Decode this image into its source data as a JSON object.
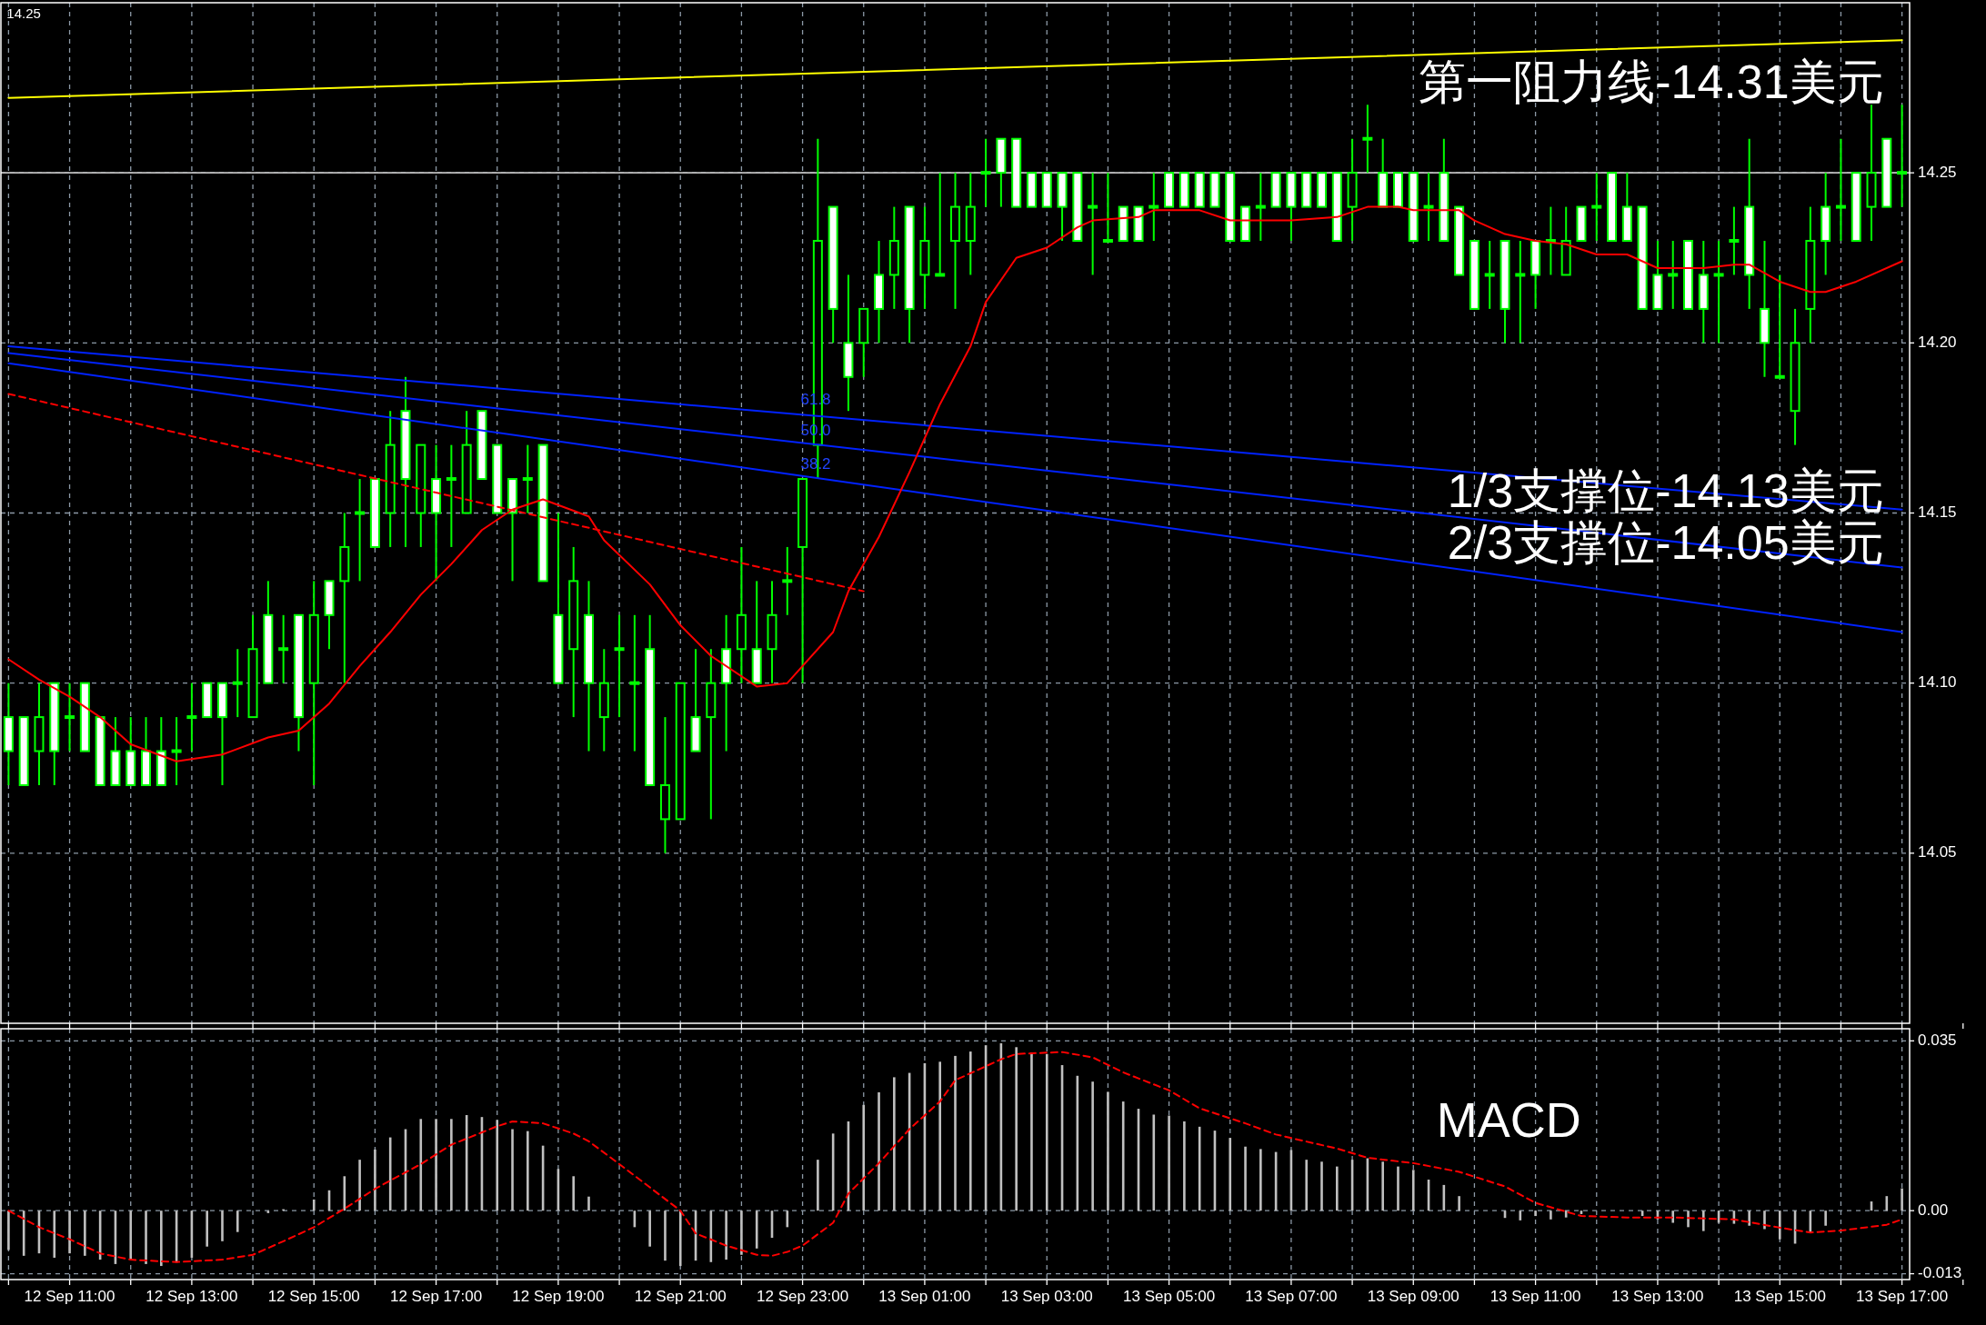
{
  "chart_data": [
    {
      "type": "candlestick",
      "color": "#00ff00",
      "grid": true,
      "tick_labels": "y",
      "ylim": [
        14.0,
        14.3
      ],
      "yticks": [
        14.05,
        {
          "value": 14.1,
          "label": "14.10"
        },
        14.15,
        {
          "value": 14.2,
          "label": "14.20"
        },
        14.25
      ],
      "categories": [
        null,
        null,
        null,
        null,
        null,
        null,
        null,
        null,
        null,
        null,
        null,
        null,
        null,
        null,
        null,
        null,
        null,
        null,
        null,
        null,
        null,
        null,
        null,
        null,
        null,
        null,
        null,
        null,
        null,
        null,
        null,
        null,
        null,
        null,
        null,
        null,
        null,
        null,
        null,
        null,
        null,
        null,
        null,
        null,
        null,
        null,
        null,
        null,
        null,
        null,
        null,
        null,
        null,
        null,
        null,
        null,
        null,
        null,
        null,
        null,
        null,
        null,
        null,
        null,
        null,
        null,
        null,
        null,
        null,
        null,
        null,
        null,
        null,
        null,
        null,
        null,
        null,
        null,
        null,
        null,
        null,
        null,
        null,
        null,
        null,
        null,
        null,
        null,
        null,
        null,
        null,
        null,
        null,
        null,
        null,
        null,
        null,
        null,
        null,
        null,
        null,
        null,
        null,
        null,
        null,
        null,
        null,
        null,
        null,
        null,
        null,
        null,
        null,
        null,
        null,
        null,
        null,
        null,
        null,
        null,
        null,
        null,
        null,
        null,
        null
      ],
      "ohlc": [
        [
          14.09,
          14.1,
          14.07,
          14.08
        ],
        [
          14.09,
          14.09,
          14.07,
          14.07
        ],
        [
          14.08,
          14.1,
          14.07,
          14.09
        ],
        [
          14.1,
          14.1,
          14.07,
          14.08
        ],
        [
          14.09,
          14.1,
          14.08,
          14.09
        ],
        [
          14.1,
          14.1,
          14.08,
          14.08
        ],
        [
          14.09,
          14.09,
          14.07,
          14.07
        ],
        [
          14.08,
          14.09,
          14.07,
          14.07
        ],
        [
          14.08,
          14.09,
          14.07,
          14.07
        ],
        [
          14.08,
          14.09,
          14.07,
          14.07
        ],
        [
          14.08,
          14.09,
          14.07,
          14.07
        ],
        [
          14.08,
          14.09,
          14.07,
          14.08
        ],
        [
          14.09,
          14.1,
          14.08,
          14.09
        ],
        [
          14.1,
          14.1,
          14.09,
          14.09
        ],
        [
          14.1,
          14.1,
          14.07,
          14.09
        ],
        [
          14.1,
          14.11,
          14.09,
          14.1
        ],
        [
          14.09,
          14.12,
          14.09,
          14.11
        ],
        [
          14.12,
          14.13,
          14.1,
          14.1
        ],
        [
          14.11,
          14.12,
          14.1,
          14.11
        ],
        [
          14.12,
          14.12,
          14.08,
          14.09
        ],
        [
          14.1,
          14.13,
          14.07,
          14.12
        ],
        [
          14.13,
          14.13,
          14.11,
          14.12
        ],
        [
          14.13,
          14.15,
          14.1,
          14.14
        ],
        [
          14.15,
          14.16,
          14.13,
          14.15
        ],
        [
          14.16,
          14.16,
          14.14,
          14.14
        ],
        [
          14.15,
          14.18,
          14.14,
          14.17
        ],
        [
          14.18,
          14.19,
          14.14,
          14.16
        ],
        [
          14.15,
          14.17,
          14.14,
          14.17
        ],
        [
          14.16,
          14.17,
          14.13,
          14.15
        ],
        [
          14.16,
          14.17,
          14.14,
          14.16
        ],
        [
          14.15,
          14.18,
          14.15,
          14.17
        ],
        [
          14.18,
          14.18,
          14.16,
          14.16
        ],
        [
          14.17,
          14.17,
          14.15,
          14.15
        ],
        [
          14.16,
          14.16,
          14.13,
          14.15
        ],
        [
          14.16,
          14.17,
          14.15,
          14.16
        ],
        [
          14.17,
          14.17,
          14.13,
          14.13
        ],
        [
          14.12,
          14.15,
          14.1,
          14.1
        ],
        [
          14.11,
          14.14,
          14.09,
          14.13
        ],
        [
          14.12,
          14.13,
          14.08,
          14.1
        ],
        [
          14.09,
          14.11,
          14.08,
          14.1
        ],
        [
          14.11,
          14.12,
          14.09,
          14.11
        ],
        [
          14.1,
          14.12,
          14.08,
          14.1
        ],
        [
          14.11,
          14.12,
          14.07,
          14.07
        ],
        [
          14.06,
          14.09,
          14.05,
          14.07
        ],
        [
          14.06,
          14.1,
          14.06,
          14.1
        ],
        [
          14.09,
          14.11,
          14.08,
          14.08
        ],
        [
          14.09,
          14.11,
          14.06,
          14.1
        ],
        [
          14.11,
          14.12,
          14.08,
          14.1
        ],
        [
          14.11,
          14.14,
          14.1,
          14.12
        ],
        [
          14.11,
          14.13,
          14.1,
          14.1
        ],
        [
          14.11,
          14.13,
          14.1,
          14.12
        ],
        [
          14.13,
          14.14,
          14.12,
          14.13
        ],
        [
          14.14,
          14.16,
          14.1,
          14.16
        ],
        [
          14.17,
          14.26,
          14.16,
          14.23
        ],
        [
          14.24,
          14.24,
          14.2,
          14.21
        ],
        [
          14.2,
          14.22,
          14.18,
          14.19
        ],
        [
          14.2,
          14.21,
          14.19,
          14.21
        ],
        [
          14.22,
          14.23,
          14.2,
          14.21
        ],
        [
          14.22,
          14.24,
          14.21,
          14.23
        ],
        [
          14.24,
          14.24,
          14.2,
          14.21
        ],
        [
          14.22,
          14.24,
          14.21,
          14.23
        ],
        [
          14.22,
          14.25,
          14.22,
          14.22
        ],
        [
          14.23,
          14.25,
          14.21,
          14.24
        ],
        [
          14.23,
          14.25,
          14.22,
          14.24
        ],
        [
          14.25,
          14.26,
          14.24,
          14.25
        ],
        [
          14.26,
          14.26,
          14.24,
          14.25
        ],
        [
          14.26,
          14.26,
          14.24,
          14.24
        ],
        [
          14.25,
          14.25,
          14.24,
          14.24
        ],
        [
          14.25,
          14.25,
          14.24,
          14.24
        ],
        [
          14.25,
          14.25,
          14.23,
          14.24
        ],
        [
          14.25,
          14.25,
          14.23,
          14.23
        ],
        [
          14.24,
          14.25,
          14.22,
          14.24
        ],
        [
          14.23,
          14.25,
          14.23,
          14.23
        ],
        [
          14.24,
          14.24,
          14.23,
          14.23
        ],
        [
          14.24,
          14.24,
          14.23,
          14.23
        ],
        [
          14.24,
          14.25,
          14.23,
          14.24
        ],
        [
          14.25,
          14.25,
          14.24,
          14.24
        ],
        [
          14.25,
          14.25,
          14.24,
          14.24
        ],
        [
          14.25,
          14.25,
          14.24,
          14.24
        ],
        [
          14.25,
          14.25,
          14.24,
          14.24
        ],
        [
          14.25,
          14.25,
          14.23,
          14.23
        ],
        [
          14.24,
          14.24,
          14.23,
          14.23
        ],
        [
          14.24,
          14.25,
          14.23,
          14.24
        ],
        [
          14.25,
          14.25,
          14.24,
          14.24
        ],
        [
          14.25,
          14.25,
          14.23,
          14.24
        ],
        [
          14.25,
          14.25,
          14.24,
          14.24
        ],
        [
          14.25,
          14.25,
          14.24,
          14.24
        ],
        [
          14.25,
          14.25,
          14.23,
          14.23
        ],
        [
          14.24,
          14.26,
          14.23,
          14.25
        ],
        [
          14.26,
          14.27,
          14.25,
          14.26
        ],
        [
          14.25,
          14.26,
          14.24,
          14.24
        ],
        [
          14.25,
          14.25,
          14.24,
          14.24
        ],
        [
          14.25,
          14.25,
          14.23,
          14.23
        ],
        [
          14.24,
          14.25,
          14.23,
          14.24
        ],
        [
          14.25,
          14.26,
          14.23,
          14.23
        ],
        [
          14.24,
          14.24,
          14.22,
          14.22
        ],
        [
          14.23,
          14.23,
          14.21,
          14.21
        ],
        [
          14.22,
          14.23,
          14.21,
          14.22
        ],
        [
          14.23,
          14.23,
          14.2,
          14.21
        ],
        [
          14.22,
          14.23,
          14.2,
          14.22
        ],
        [
          14.23,
          14.23,
          14.21,
          14.22
        ],
        [
          14.23,
          14.24,
          14.22,
          14.23
        ],
        [
          14.22,
          14.24,
          14.22,
          14.23
        ],
        [
          14.24,
          14.24,
          14.23,
          14.23
        ],
        [
          14.24,
          14.25,
          14.23,
          14.24
        ],
        [
          14.25,
          14.25,
          14.23,
          14.23
        ],
        [
          14.24,
          14.25,
          14.23,
          14.23
        ],
        [
          14.24,
          14.24,
          14.21,
          14.21
        ],
        [
          14.22,
          14.23,
          14.21,
          14.21
        ],
        [
          14.22,
          14.23,
          14.21,
          14.22
        ],
        [
          14.23,
          14.23,
          14.21,
          14.21
        ],
        [
          14.22,
          14.23,
          14.2,
          14.21
        ],
        [
          14.22,
          14.23,
          14.2,
          14.22
        ],
        [
          14.23,
          14.24,
          14.22,
          14.23
        ],
        [
          14.24,
          14.26,
          14.21,
          14.22
        ],
        [
          14.21,
          14.23,
          14.19,
          14.2
        ],
        [
          14.19,
          14.22,
          14.19,
          14.19
        ],
        [
          14.18,
          14.21,
          14.17,
          14.2
        ],
        [
          14.21,
          14.24,
          14.2,
          14.23
        ],
        [
          14.24,
          14.25,
          14.22,
          14.23
        ],
        [
          14.24,
          14.26,
          14.23,
          14.24
        ],
        [
          14.25,
          14.25,
          14.23,
          14.23
        ],
        [
          14.24,
          14.27,
          14.23,
          14.25
        ],
        [
          14.26,
          14.26,
          14.24,
          14.24
        ],
        [
          14.25,
          14.27,
          14.24,
          14.25
        ]
      ],
      "series": [
        {
          "type": "line",
          "color": "#ffff00",
          "name": "第一阻力线-14.31美元",
          "values": [
            14.272,
            null,
            null,
            null,
            null,
            null,
            null,
            null,
            null,
            null,
            null,
            null,
            null,
            null,
            null,
            null,
            null,
            null,
            null,
            null,
            null,
            null,
            null,
            null,
            null,
            null,
            null,
            null,
            null,
            null,
            null,
            null,
            null,
            null,
            null,
            null,
            null,
            null,
            null,
            null,
            null,
            null,
            null,
            null,
            null,
            null,
            null,
            null,
            null,
            null,
            null,
            null,
            null,
            null,
            null,
            null,
            null,
            null,
            null,
            null,
            null,
            null,
            null,
            null,
            null,
            null,
            null,
            null,
            null,
            null,
            null,
            null,
            null,
            null,
            null,
            null,
            null,
            null,
            null,
            null,
            null,
            null,
            null,
            null,
            null,
            null,
            null,
            null,
            null,
            null,
            null,
            null,
            null,
            null,
            null,
            null,
            null,
            null,
            null,
            null,
            null,
            null,
            null,
            null,
            null,
            null,
            null,
            null,
            null,
            null,
            null,
            null,
            null,
            null,
            null,
            null,
            null,
            null,
            null,
            null,
            null,
            null,
            null,
            null,
            14.289
          ]
        },
        {
          "type": "line",
          "color": "#0022ff",
          "values": [
            14.199,
            null,
            null,
            null,
            null,
            null,
            null,
            null,
            null,
            null,
            null,
            null,
            null,
            null,
            null,
            null,
            null,
            null,
            null,
            null,
            null,
            null,
            null,
            null,
            null,
            null,
            null,
            null,
            null,
            null,
            null,
            null,
            null,
            null,
            null,
            null,
            null,
            null,
            null,
            null,
            null,
            null,
            null,
            null,
            null,
            null,
            null,
            null,
            null,
            null,
            null,
            null,
            null,
            null,
            null,
            null,
            null,
            null,
            null,
            null,
            null,
            null,
            null,
            null,
            null,
            null,
            null,
            null,
            null,
            null,
            null,
            null,
            null,
            null,
            null,
            null,
            null,
            null,
            null,
            null,
            null,
            null,
            null,
            null,
            null,
            null,
            null,
            null,
            null,
            null,
            null,
            null,
            null,
            null,
            null,
            null,
            null,
            null,
            null,
            null,
            null,
            null,
            null,
            null,
            null,
            null,
            null,
            null,
            null,
            null,
            null,
            null,
            null,
            null,
            null,
            null,
            null,
            null,
            null,
            null,
            null,
            null,
            null,
            null,
            14.151
          ]
        },
        {
          "type": "line",
          "color": "#0022ff",
          "name": "1/3支撑位-14.13美元",
          "values": [
            14.197,
            null,
            null,
            null,
            null,
            null,
            null,
            null,
            null,
            null,
            null,
            null,
            null,
            null,
            null,
            null,
            null,
            null,
            null,
            null,
            null,
            null,
            null,
            null,
            null,
            null,
            null,
            null,
            null,
            null,
            null,
            null,
            null,
            null,
            null,
            null,
            null,
            null,
            null,
            null,
            null,
            null,
            null,
            null,
            null,
            null,
            null,
            null,
            null,
            null,
            null,
            null,
            null,
            null,
            null,
            null,
            null,
            null,
            null,
            null,
            null,
            null,
            null,
            null,
            null,
            null,
            null,
            null,
            null,
            null,
            null,
            null,
            null,
            null,
            null,
            null,
            null,
            null,
            null,
            null,
            null,
            null,
            null,
            null,
            null,
            null,
            null,
            null,
            null,
            null,
            null,
            null,
            null,
            null,
            null,
            null,
            null,
            null,
            null,
            null,
            null,
            null,
            null,
            null,
            null,
            null,
            null,
            null,
            null,
            null,
            null,
            null,
            null,
            null,
            null,
            null,
            null,
            null,
            null,
            null,
            null,
            null,
            null,
            null,
            14.134
          ]
        },
        {
          "type": "line",
          "color": "#0022ff",
          "name": "2/3支撑位-14.05美元",
          "values": [
            14.194,
            null,
            null,
            null,
            null,
            null,
            null,
            null,
            null,
            null,
            null,
            null,
            null,
            null,
            null,
            null,
            null,
            null,
            null,
            null,
            null,
            null,
            null,
            null,
            null,
            null,
            null,
            null,
            null,
            null,
            null,
            null,
            null,
            null,
            null,
            null,
            null,
            null,
            null,
            null,
            null,
            null,
            null,
            null,
            null,
            null,
            null,
            null,
            null,
            null,
            null,
            null,
            null,
            null,
            null,
            null,
            null,
            null,
            null,
            null,
            null,
            null,
            null,
            null,
            null,
            null,
            null,
            null,
            null,
            null,
            null,
            null,
            null,
            null,
            null,
            null,
            null,
            null,
            null,
            null,
            null,
            null,
            null,
            null,
            null,
            null,
            null,
            null,
            null,
            null,
            null,
            null,
            null,
            null,
            null,
            null,
            null,
            null,
            null,
            null,
            null,
            null,
            null,
            null,
            null,
            null,
            null,
            null,
            null,
            null,
            null,
            null,
            null,
            null,
            null,
            null,
            null,
            null,
            null,
            null,
            null,
            null,
            null,
            null,
            14.115
          ]
        },
        {
          "type": "line",
          "color": "#ff0000",
          "line_style": "dashed",
          "values": [
            14.185,
            null,
            null,
            null,
            null,
            null,
            null,
            null,
            null,
            null,
            null,
            null,
            null,
            null,
            null,
            null,
            null,
            null,
            null,
            null,
            null,
            null,
            null,
            null,
            null,
            null,
            null,
            null,
            null,
            null,
            null,
            null,
            null,
            null,
            null,
            null,
            null,
            null,
            null,
            null,
            null,
            null,
            null,
            null,
            null,
            null,
            null,
            null,
            null,
            null,
            null,
            null,
            null,
            null,
            null,
            null,
            14.127,
            null,
            null,
            null,
            null,
            null,
            null,
            null,
            null,
            null,
            null,
            null,
            null,
            null,
            null,
            null,
            null,
            null,
            null,
            null,
            null,
            null,
            null,
            null,
            null,
            null,
            null,
            null,
            null,
            null,
            null,
            null,
            null,
            null,
            null,
            null,
            null,
            null,
            null,
            null,
            null,
            null,
            null,
            null,
            null,
            null,
            null,
            null,
            null,
            null,
            null,
            null,
            null,
            null,
            null,
            null,
            null,
            null,
            null,
            null,
            null,
            null,
            null,
            null,
            null,
            null,
            null,
            null,
            null
          ]
        },
        {
          "type": "line",
          "color": "#ff0000",
          "values": [
            14.107,
            null,
            14.101,
            null,
            14.096,
            null,
            14.09,
            null,
            14.082,
            null,
            null,
            14.077,
            null,
            null,
            14.079,
            null,
            null,
            14.084,
            null,
            14.086,
            null,
            14.094,
            null,
            14.105,
            null,
            14.115,
            null,
            14.126,
            null,
            14.135,
            null,
            14.145,
            null,
            14.151,
            null,
            14.154,
            null,
            null,
            14.149,
            14.142,
            null,
            null,
            14.129,
            null,
            14.117,
            null,
            14.108,
            null,
            null,
            14.099,
            null,
            14.1,
            14.105,
            null,
            14.115,
            14.127,
            null,
            14.143,
            null,
            14.162,
            null,
            14.182,
            null,
            14.199,
            14.212,
            null,
            14.225,
            null,
            14.228,
            null,
            14.234,
            14.236,
            null,
            null,
            14.237,
            14.239,
            null,
            null,
            14.239,
            null,
            14.236,
            null,
            null,
            null,
            14.236,
            null,
            null,
            14.237,
            null,
            14.24,
            null,
            14.24,
            14.239,
            null,
            null,
            14.239,
            14.236,
            null,
            14.232,
            null,
            14.23,
            null,
            14.229,
            null,
            14.226,
            null,
            14.226,
            null,
            14.222,
            null,
            null,
            14.222,
            null,
            14.223,
            14.223,
            null,
            14.218,
            null,
            14.215,
            14.215,
            null,
            14.218,
            null,
            null,
            14.224
          ]
        }
      ],
      "ref_lines": [
        {
          "axis": "y",
          "value": 14.25,
          "color": "#c0c0c0"
        }
      ],
      "annotations": [
        "14.25",
        "61.8",
        "50.0",
        "38.2"
      ]
    },
    {
      "type": "bar",
      "title": "MACD",
      "grid": true,
      "ylim": [
        -0.0142,
        0.0375
      ],
      "yticks": [
        -0.013,
        {
          "value": 0,
          "label": "0.00"
        },
        0.035
      ],
      "categories": [
        null,
        null,
        null,
        null,
        "12 Sep 11:00",
        null,
        null,
        null,
        null,
        null,
        null,
        null,
        "12 Sep 13:00",
        null,
        null,
        null,
        null,
        null,
        null,
        null,
        "12 Sep 15:00",
        null,
        null,
        null,
        null,
        null,
        null,
        null,
        "12 Sep 17:00",
        null,
        null,
        null,
        null,
        null,
        null,
        null,
        "12 Sep 19:00",
        null,
        null,
        null,
        null,
        null,
        null,
        null,
        "12 Sep 21:00",
        null,
        null,
        null,
        null,
        null,
        null,
        null,
        "12 Sep 23:00",
        null,
        null,
        null,
        null,
        null,
        null,
        null,
        "13 Sep 01:00",
        null,
        null,
        null,
        null,
        null,
        null,
        null,
        "13 Sep 03:00",
        null,
        null,
        null,
        null,
        null,
        null,
        null,
        "13 Sep 05:00",
        null,
        null,
        null,
        null,
        null,
        null,
        null,
        "13 Sep 07:00",
        null,
        null,
        null,
        null,
        null,
        null,
        null,
        "13 Sep 09:00",
        null,
        null,
        null,
        null,
        null,
        null,
        null,
        "13 Sep 11:00",
        null,
        null,
        null,
        null,
        null,
        null,
        null,
        "13 Sep 13:00",
        null,
        null,
        null,
        null,
        null,
        null,
        null,
        "13 Sep 15:00",
        null,
        null,
        null,
        null,
        null,
        null,
        null,
        "13 Sep 17:00"
      ],
      "series": [
        {
          "type": "bar",
          "color": "#c0c0c0",
          "values": [
            -0.0081,
            -0.0093,
            -0.0088,
            -0.0097,
            -0.0088,
            -0.0093,
            -0.0101,
            -0.011,
            -0.0101,
            -0.011,
            -0.0114,
            -0.0107,
            -0.0097,
            -0.0074,
            -0.0063,
            -0.0044,
            0,
            -0.0005,
            0.0003,
            0,
            0.0023,
            0.0042,
            0.0071,
            0.0105,
            0.0126,
            0.0151,
            0.0168,
            0.0189,
            0.0189,
            0.0189,
            0.0197,
            0.0193,
            0.0187,
            0.0168,
            0.0164,
            0.0134,
            0.0086,
            0.0071,
            0.0029,
            0,
            0,
            -0.0034,
            -0.0074,
            -0.0103,
            -0.0114,
            -0.0103,
            -0.0106,
            -0.0101,
            -0.0091,
            -0.0078,
            -0.0056,
            -0.0034,
            0,
            0.0105,
            0.0159,
            0.0184,
            0.0218,
            0.0244,
            0.0275,
            0.0284,
            0.0304,
            0.0307,
            0.0319,
            0.0328,
            0.0341,
            0.0345,
            0.0337,
            0.0326,
            0.0323,
            0.03,
            0.0278,
            0.0266,
            0.0245,
            0.0225,
            0.021,
            0.0198,
            0.0196,
            0.0184,
            0.0173,
            0.0165,
            0.015,
            0.0132,
            0.0127,
            0.0121,
            0.0125,
            0.0105,
            0.0101,
            0.0091,
            0.0105,
            0.0108,
            0.0101,
            0.0091,
            0.0084,
            0.0064,
            0.0053,
            0.003,
            0,
            0,
            -0.0015,
            -0.002,
            -0.0011,
            -0.0018,
            -0.0014,
            -0.0007,
            0,
            0,
            0,
            -0.0011,
            -0.0018,
            -0.0025,
            -0.0034,
            -0.0042,
            -0.0025,
            -0.0027,
            -0.0031,
            -0.0038,
            -0.0059,
            -0.0068,
            -0.0045,
            -0.0031,
            0,
            0,
            0.0019,
            0.003,
            0.0046
          ]
        },
        {
          "type": "line",
          "color": "#ff0000",
          "line_style": "dashed",
          "values": [
            0,
            null,
            -0.0034,
            null,
            -0.0059,
            null,
            -0.0088,
            null,
            -0.0101,
            null,
            null,
            -0.0106,
            null,
            null,
            -0.0101,
            null,
            -0.0091,
            null,
            -0.0063,
            null,
            -0.0034,
            null,
            0.0004,
            null,
            0.0045,
            null,
            null,
            0.0096,
            null,
            0.0136,
            null,
            null,
            0.0174,
            0.0184,
            null,
            0.018,
            null,
            0.0159,
            0.0143,
            null,
            0.0096,
            null,
            0.0048,
            null,
            0,
            -0.0047,
            null,
            -0.0072,
            null,
            -0.0091,
            -0.0093,
            -0.0085,
            -0.0072,
            null,
            -0.0025,
            0.0035,
            null,
            0.0098,
            null,
            0.0168,
            null,
            0.0225,
            0.0269,
            null,
            null,
            0.0312,
            0.0323,
            null,
            null,
            0.0327,
            null,
            0.0316,
            null,
            0.0285,
            null,
            null,
            0.0248,
            null,
            0.0211,
            null,
            null,
            0.018,
            null,
            0.0157,
            null,
            null,
            null,
            0.0128,
            null,
            0.0109,
            null,
            null,
            0.0098,
            null,
            null,
            0.008,
            null,
            null,
            0.005,
            null,
            0.0016,
            null,
            null,
            -0.0011,
            null,
            null,
            -0.0014,
            null,
            null,
            -0.0014,
            null,
            null,
            null,
            -0.0018,
            null,
            null,
            -0.0035,
            null,
            -0.0045,
            null,
            -0.0041,
            null,
            null,
            -0.0029,
            -0.0018
          ]
        }
      ]
    }
  ]
}
